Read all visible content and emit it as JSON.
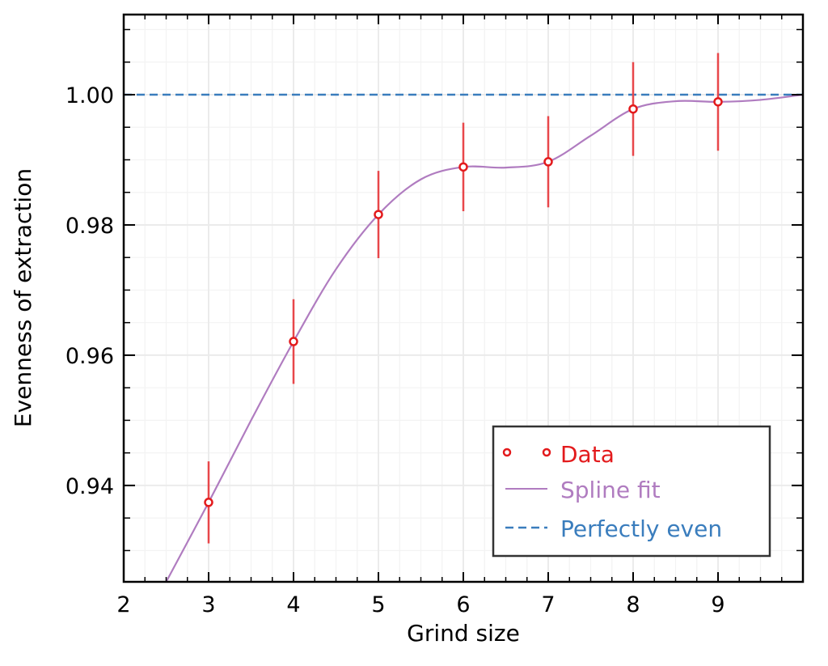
{
  "chart_data": {
    "type": "line",
    "title": "",
    "xlabel": "Grind size",
    "ylabel": "Evenness of extraction",
    "xlim": [
      2,
      10
    ],
    "ylim": [
      0.9252,
      1.0123
    ],
    "xticks": [
      2,
      3,
      4,
      5,
      6,
      7,
      8,
      9
    ],
    "xtick_labels": [
      "2",
      "3",
      "4",
      "5",
      "6",
      "7",
      "8",
      "9"
    ],
    "yticks": [
      0.94,
      0.96,
      0.98,
      1.0
    ],
    "ytick_labels": [
      "0.94",
      "0.96",
      "0.98",
      "1.00"
    ],
    "grid": true,
    "legend_position": "lower-right",
    "series": [
      {
        "name": "Data",
        "kind": "errorbar-points",
        "color": "#e31a1c",
        "errcolor": "#e8474a",
        "x": [
          3,
          4,
          5,
          6,
          7,
          8,
          9
        ],
        "y": [
          0.9374,
          0.9621,
          0.9816,
          0.9889,
          0.9897,
          0.9978,
          0.9989
        ],
        "yerr": [
          0.0063,
          0.0065,
          0.0067,
          0.0068,
          0.007,
          0.0072,
          0.0075
        ]
      },
      {
        "name": "Spline fit",
        "kind": "line",
        "color": "#b07cc0",
        "x": [
          2.5,
          3,
          3.5,
          4,
          4.5,
          5,
          5.5,
          6,
          6.5,
          7,
          7.5,
          8,
          8.5,
          9,
          9.5,
          10
        ],
        "y": [
          0.9252,
          0.9374,
          0.95,
          0.9621,
          0.9732,
          0.9816,
          0.987,
          0.9889,
          0.9888,
          0.9897,
          0.9937,
          0.9978,
          0.999,
          0.9989,
          0.9992,
          1.0
        ]
      },
      {
        "name": "Perfectly even",
        "kind": "hline",
        "color": "#3a7dbd",
        "y": 1.0
      }
    ]
  }
}
